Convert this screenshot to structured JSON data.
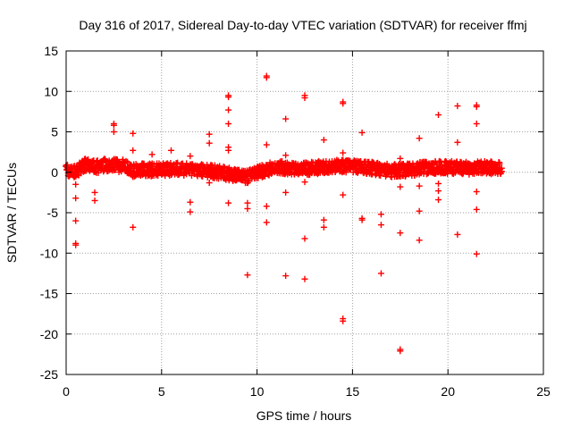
{
  "chart_data": {
    "type": "scatter",
    "title": "Day 316 of 2017, Sidereal Day-to-day VTEC variation (SDTVAR) for receiver ffmj",
    "xlabel": "GPS time / hours",
    "ylabel": "SDTVAR / TECUs",
    "xlim": [
      0,
      25
    ],
    "ylim": [
      -25,
      15
    ],
    "x_ticks": [
      0,
      5,
      10,
      15,
      20,
      25
    ],
    "y_ticks": [
      -25,
      -20,
      -15,
      -10,
      -5,
      0,
      5,
      10,
      15
    ],
    "grid": true,
    "series": [
      {
        "name": "SDTVAR",
        "color": "#ff0000",
        "marker": "plus",
        "band": {
          "x_start": 0.0,
          "x_end": 22.8,
          "center": [
            [
              0,
              0.2
            ],
            [
              0.5,
              0.0
            ],
            [
              1,
              1.0
            ],
            [
              1.5,
              0.6
            ],
            [
              2,
              0.9
            ],
            [
              3,
              0.8
            ],
            [
              3.5,
              0.2
            ],
            [
              4,
              0.3
            ],
            [
              5,
              0.3
            ],
            [
              6,
              0.4
            ],
            [
              7,
              0.3
            ],
            [
              8,
              0.0
            ],
            [
              9,
              -0.4
            ],
            [
              9.5,
              -0.6
            ],
            [
              10,
              0.0
            ],
            [
              10.5,
              0.3
            ],
            [
              11,
              0.7
            ],
            [
              12,
              0.4
            ],
            [
              13,
              0.5
            ],
            [
              14,
              0.8
            ],
            [
              15,
              0.7
            ],
            [
              16,
              0.5
            ],
            [
              17,
              0.2
            ],
            [
              18,
              0.3
            ],
            [
              19,
              0.6
            ],
            [
              20,
              0.6
            ],
            [
              21,
              0.5
            ],
            [
              22,
              0.6
            ],
            [
              22.8,
              0.5
            ]
          ],
          "spread": 0.8
        },
        "outliers": [
          [
            0.5,
            -1.5
          ],
          [
            0.5,
            -3.2
          ],
          [
            0.5,
            -6.0
          ],
          [
            0.5,
            -8.8
          ],
          [
            0.5,
            -9.0
          ],
          [
            1.5,
            -2.5
          ],
          [
            1.5,
            -3.5
          ],
          [
            2.5,
            6.0
          ],
          [
            2.5,
            5.8
          ],
          [
            2.5,
            5.0
          ],
          [
            3.5,
            4.8
          ],
          [
            3.5,
            2.7
          ],
          [
            3.5,
            -6.8
          ],
          [
            4.5,
            2.2
          ],
          [
            5.5,
            2.7
          ],
          [
            6.5,
            -3.7
          ],
          [
            6.5,
            -4.9
          ],
          [
            6.5,
            2.0
          ],
          [
            7.5,
            4.7
          ],
          [
            7.5,
            3.6
          ],
          [
            7.5,
            -1.3
          ],
          [
            8.5,
            9.5
          ],
          [
            8.5,
            9.3
          ],
          [
            8.5,
            7.7
          ],
          [
            8.5,
            6.0
          ],
          [
            8.5,
            3.1
          ],
          [
            8.5,
            2.7
          ],
          [
            8.5,
            -3.8
          ],
          [
            9.5,
            -3.8
          ],
          [
            9.5,
            -4.5
          ],
          [
            9.5,
            -12.7
          ],
          [
            10.5,
            11.9
          ],
          [
            10.5,
            11.7
          ],
          [
            10.5,
            3.4
          ],
          [
            10.5,
            -4.2
          ],
          [
            10.5,
            -6.2
          ],
          [
            11.5,
            6.6
          ],
          [
            11.5,
            2.1
          ],
          [
            11.5,
            -2.5
          ],
          [
            11.5,
            -12.8
          ],
          [
            12.5,
            9.5
          ],
          [
            12.5,
            9.2
          ],
          [
            12.5,
            -1.2
          ],
          [
            12.5,
            -8.2
          ],
          [
            12.5,
            -13.2
          ],
          [
            13.5,
            4.0
          ],
          [
            13.5,
            -5.9
          ],
          [
            13.5,
            -6.8
          ],
          [
            14.5,
            8.7
          ],
          [
            14.5,
            8.5
          ],
          [
            14.5,
            2.4
          ],
          [
            14.5,
            -2.8
          ],
          [
            14.5,
            -18.1
          ],
          [
            14.5,
            -18.4
          ],
          [
            15.5,
            4.9
          ],
          [
            15.5,
            -5.7
          ],
          [
            15.5,
            -5.9
          ],
          [
            16.5,
            -5.2
          ],
          [
            16.5,
            -6.5
          ],
          [
            16.5,
            -12.5
          ],
          [
            17.5,
            1.7
          ],
          [
            17.5,
            -1.8
          ],
          [
            17.5,
            -7.5
          ],
          [
            17.5,
            -21.9
          ],
          [
            17.5,
            -22.1
          ],
          [
            18.5,
            4.2
          ],
          [
            18.5,
            -1.7
          ],
          [
            18.5,
            -4.8
          ],
          [
            18.5,
            -8.4
          ],
          [
            19.5,
            7.1
          ],
          [
            19.5,
            -1.4
          ],
          [
            19.5,
            -2.3
          ],
          [
            19.5,
            -3.4
          ],
          [
            20.5,
            8.2
          ],
          [
            20.5,
            3.7
          ],
          [
            20.5,
            -7.7
          ],
          [
            21.5,
            8.3
          ],
          [
            21.5,
            8.1
          ],
          [
            21.5,
            6.0
          ],
          [
            21.5,
            -2.4
          ],
          [
            21.5,
            -4.6
          ],
          [
            21.5,
            -10.1
          ]
        ]
      }
    ]
  }
}
